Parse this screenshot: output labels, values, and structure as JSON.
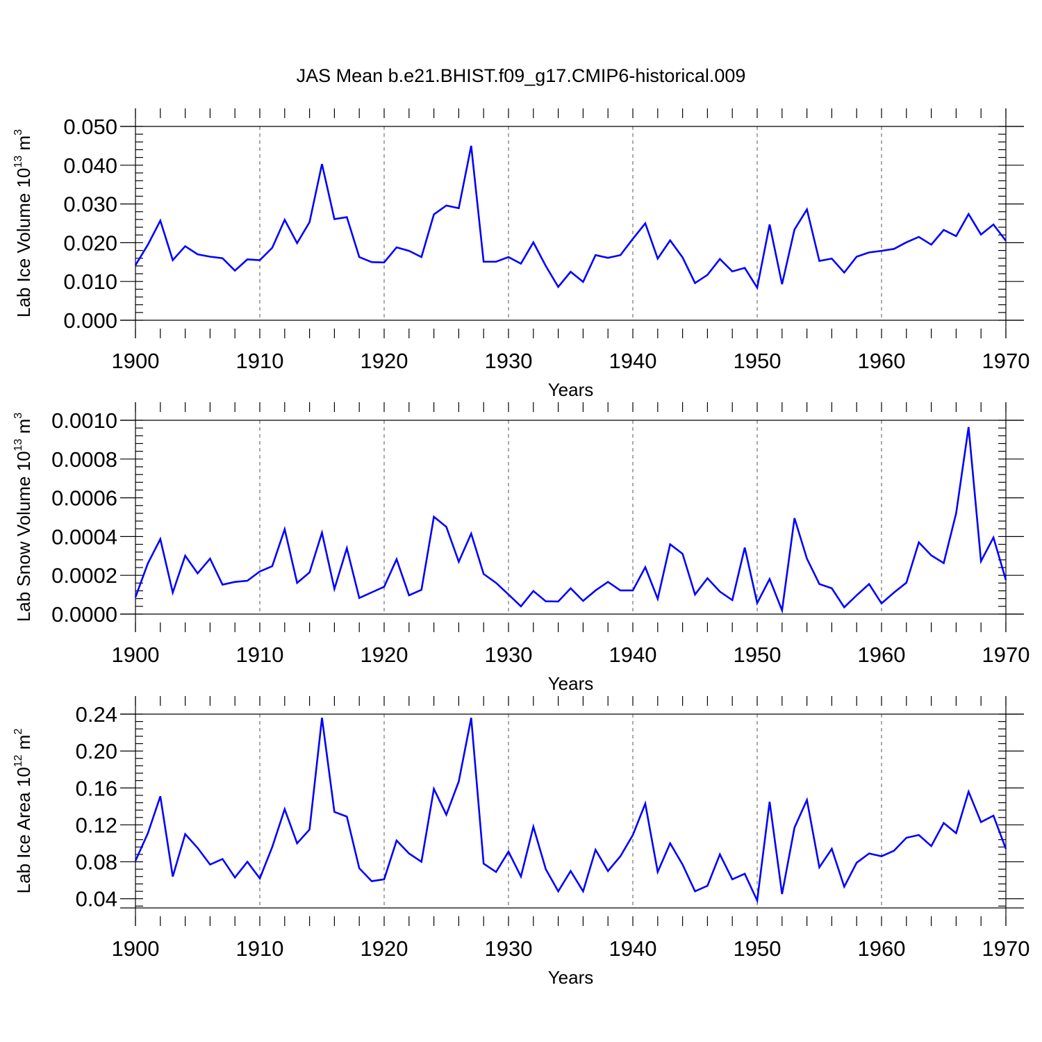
{
  "title": "JAS Mean b.e21.BHIST.f09_g17.CMIP6-historical.009",
  "colors": {
    "series": "#0000ff",
    "axes": "#000000",
    "grid": "#555555"
  },
  "chart_data": [
    {
      "type": "line",
      "title": "JAS Mean b.e21.BHIST.f09_g17.CMIP6-historical.009",
      "ylabel": "Lab Ice Volume 10",
      "ylabel_exp": "13",
      "ylabel_unit": " m",
      "ylabel_unit_exp": "3",
      "xlabel": "Years",
      "xlim": [
        1900,
        1970
      ],
      "ylim": [
        0,
        0.05
      ],
      "grid": true,
      "x_ticks": [
        1900,
        1910,
        1920,
        1930,
        1940,
        1950,
        1960,
        1970
      ],
      "x_tick_labels": [
        "1900",
        "1910",
        "1920",
        "1930",
        "1940",
        "1950",
        "1960",
        "1970"
      ],
      "y_ticks": [
        0,
        0.01,
        0.02,
        0.03,
        0.04,
        0.05
      ],
      "y_tick_labels": [
        "0.000",
        "0.010",
        "0.020",
        "0.030",
        "0.040",
        "0.050"
      ],
      "x_start": 1900,
      "values": [
        0.0142,
        0.0195,
        0.0257,
        0.0155,
        0.0191,
        0.017,
        0.0164,
        0.016,
        0.0128,
        0.0157,
        0.0155,
        0.0187,
        0.0259,
        0.0199,
        0.0253,
        0.0403,
        0.0261,
        0.0266,
        0.0163,
        0.015,
        0.0149,
        0.0188,
        0.0179,
        0.0163,
        0.0273,
        0.0296,
        0.0289,
        0.045,
        0.0151,
        0.0151,
        0.0163,
        0.0146,
        0.0201,
        0.014,
        0.0086,
        0.0125,
        0.0099,
        0.0168,
        0.0161,
        0.0168,
        0.021,
        0.025,
        0.0159,
        0.0206,
        0.0162,
        0.0096,
        0.0117,
        0.0158,
        0.0126,
        0.0135,
        0.0084,
        0.0247,
        0.0093,
        0.0234,
        0.0286,
        0.0153,
        0.0159,
        0.0123,
        0.0164,
        0.0175,
        0.0179,
        0.0184,
        0.0201,
        0.0215,
        0.0195,
        0.0233,
        0.0217,
        0.0274,
        0.0221,
        0.0247,
        0.0205
      ]
    },
    {
      "type": "line",
      "ylabel": "Lab Snow Volume 10",
      "ylabel_exp": "13",
      "ylabel_unit": " m",
      "ylabel_unit_exp": "3",
      "xlabel": "Years",
      "xlim": [
        1900,
        1970
      ],
      "ylim": [
        0,
        0.001
      ],
      "grid": true,
      "x_ticks": [
        1900,
        1910,
        1920,
        1930,
        1940,
        1950,
        1960,
        1970
      ],
      "x_tick_labels": [
        "1900",
        "1910",
        "1920",
        "1930",
        "1940",
        "1950",
        "1960",
        "1970"
      ],
      "y_ticks": [
        0,
        0.0002,
        0.0004,
        0.0006,
        0.0008,
        0.001
      ],
      "y_tick_labels": [
        "0.0000",
        "0.0002",
        "0.0004",
        "0.0006",
        "0.0008",
        "0.0010"
      ],
      "x_start": 1900,
      "values": [
        8.7e-05,
        0.000262,
        0.000387,
        0.000111,
        0.000301,
        0.00021,
        0.000286,
        0.000152,
        0.000166,
        0.000172,
        0.00022,
        0.000247,
        0.000438,
        0.000161,
        0.000215,
        0.00042,
        0.00013,
        0.00034,
        8.3e-05,
        0.000112,
        0.000141,
        0.000283,
        9.7e-05,
        0.000125,
        0.000502,
        0.00045,
        0.00027,
        0.000415,
        0.000207,
        0.000161,
        0.000101,
        4e-05,
        0.000119,
        6.6e-05,
        6.5e-05,
        0.000133,
        6.8e-05,
        0.000122,
        0.000166,
        0.000122,
        0.000122,
        0.000242,
        7.9e-05,
        0.00036,
        0.000311,
        0.000101,
        0.000185,
        0.000116,
        7.2e-05,
        0.000343,
        5.7e-05,
        0.000181,
        1.9e-05,
        0.000495,
        0.000286,
        0.000155,
        0.000133,
        3.5e-05,
        9.7e-05,
        0.000155,
        5.5e-05,
        0.000111,
        0.000162,
        0.00037,
        0.000303,
        0.000263,
        0.00052,
        0.000965,
        0.000273,
        0.000395,
        0.000176
      ]
    },
    {
      "type": "line",
      "ylabel": "Lab Ice Area 10",
      "ylabel_exp": "12",
      "ylabel_unit": " m",
      "ylabel_unit_exp": "2",
      "xlabel": "Years",
      "xlim": [
        1900,
        1970
      ],
      "ylim": [
        0.03,
        0.24
      ],
      "grid": true,
      "x_ticks": [
        1900,
        1910,
        1920,
        1930,
        1940,
        1950,
        1960,
        1970
      ],
      "x_tick_labels": [
        "1900",
        "1910",
        "1920",
        "1930",
        "1940",
        "1950",
        "1960",
        "1970"
      ],
      "y_ticks": [
        0.04,
        0.08,
        0.12,
        0.16,
        0.2,
        0.24
      ],
      "y_tick_labels": [
        "0.04",
        "0.08",
        "0.12",
        "0.16",
        "0.20",
        "0.24"
      ],
      "x_start": 1900,
      "values": [
        0.081,
        0.111,
        0.151,
        0.064,
        0.11,
        0.095,
        0.077,
        0.083,
        0.063,
        0.08,
        0.062,
        0.096,
        0.137,
        0.1,
        0.115,
        0.236,
        0.134,
        0.129,
        0.073,
        0.059,
        0.061,
        0.103,
        0.089,
        0.08,
        0.159,
        0.131,
        0.167,
        0.236,
        0.078,
        0.069,
        0.091,
        0.064,
        0.118,
        0.072,
        0.048,
        0.07,
        0.048,
        0.093,
        0.07,
        0.086,
        0.109,
        0.143,
        0.069,
        0.1,
        0.077,
        0.048,
        0.054,
        0.088,
        0.061,
        0.067,
        0.038,
        0.145,
        0.045,
        0.117,
        0.147,
        0.074,
        0.094,
        0.053,
        0.079,
        0.089,
        0.086,
        0.092,
        0.106,
        0.109,
        0.097,
        0.122,
        0.111,
        0.156,
        0.123,
        0.13,
        0.094
      ]
    }
  ]
}
